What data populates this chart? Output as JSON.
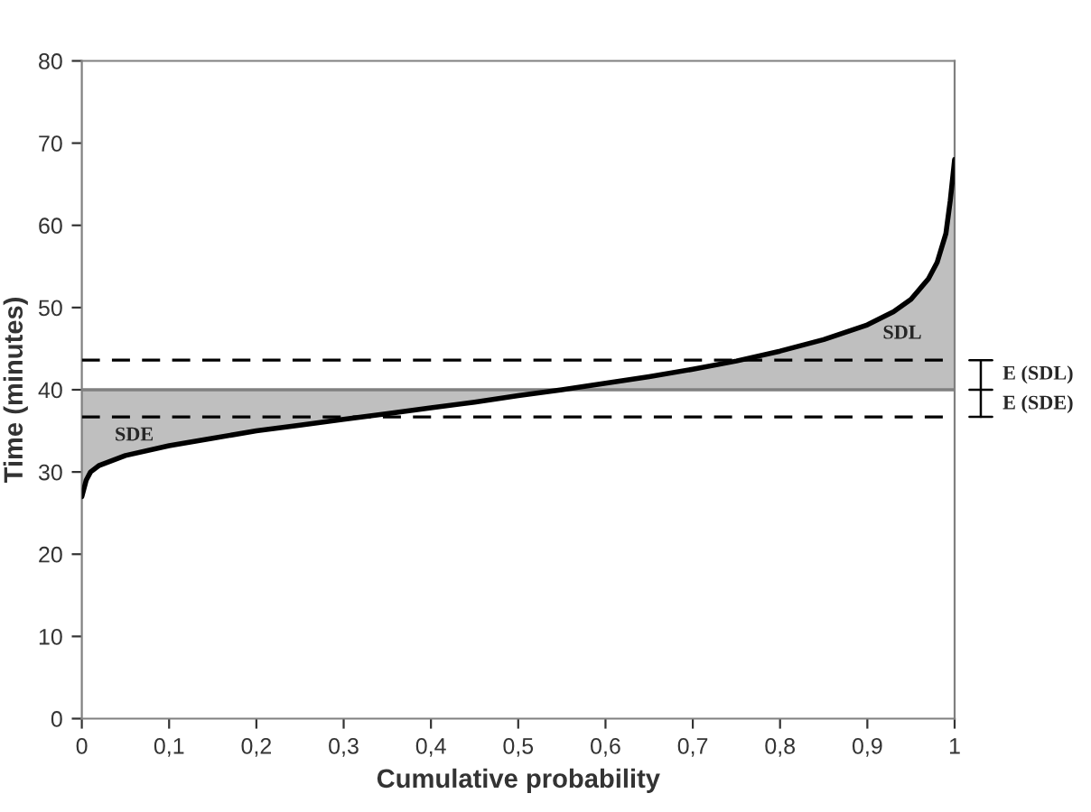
{
  "chart_data": {
    "type": "line",
    "xlabel": "Cumulative probability",
    "ylabel": "Time (minutes)",
    "x": [
      0,
      0.005,
      0.01,
      0.02,
      0.05,
      0.1,
      0.15,
      0.2,
      0.25,
      0.3,
      0.35,
      0.4,
      0.45,
      0.5,
      0.55,
      0.6,
      0.65,
      0.7,
      0.75,
      0.8,
      0.85,
      0.9,
      0.93,
      0.95,
      0.97,
      0.98,
      0.99,
      0.995,
      1
    ],
    "series": [
      {
        "color": "#000000",
        "values": [
          27,
          29,
          30,
          30.8,
          32,
          33.2,
          34.1,
          35,
          35.7,
          36.4,
          37.1,
          37.8,
          38.5,
          39.3,
          40,
          40.8,
          41.6,
          42.5,
          43.5,
          44.7,
          46.1,
          47.9,
          49.5,
          51,
          53.5,
          55.5,
          59,
          63,
          68
        ],
        "lower": [
          27,
          29,
          30,
          30.8,
          32,
          33.2,
          34.1,
          35,
          35.7,
          36.4,
          37.1,
          37.8,
          38.5,
          39.3,
          40,
          40,
          40,
          40,
          40,
          40,
          40,
          40,
          40,
          40,
          40,
          40,
          40,
          40,
          40
        ],
        "upper": [
          40,
          40,
          40,
          40,
          40,
          40,
          40,
          40,
          40,
          40,
          40,
          40,
          40,
          40,
          40,
          40.8,
          41.6,
          42.5,
          43.5,
          44.7,
          46.1,
          47.9,
          49.5,
          51,
          53.5,
          55.5,
          59,
          63,
          68
        ]
      }
    ],
    "xlim": [
      0,
      1
    ],
    "ylim": [
      0,
      80
    ],
    "xticks": [
      0,
      {
        "value": 0.1,
        "label": "0,1"
      },
      {
        "value": 0.2,
        "label": "0,2"
      },
      {
        "value": 0.3,
        "label": "0,3"
      },
      {
        "value": 0.4,
        "label": "0,4"
      },
      {
        "value": 0.5,
        "label": "0,5"
      },
      {
        "value": 0.6,
        "label": "0,6"
      },
      {
        "value": 0.7,
        "label": "0,7"
      },
      {
        "value": 0.8,
        "label": "0,8"
      },
      {
        "value": 0.9,
        "label": "0,9"
      },
      1
    ],
    "yticks": [
      0,
      10,
      20,
      30,
      40,
      50,
      60,
      70,
      80
    ],
    "ref_lines": [
      {
        "axis": "y",
        "value": 40,
        "color": "#808080",
        "line_style": "solid"
      },
      {
        "axis": "y",
        "value": 43.6,
        "color": "#000000",
        "line_style": "dashed"
      },
      {
        "axis": "y",
        "value": 36.7,
        "color": "#000000",
        "line_style": "dashed"
      }
    ],
    "annotations": [
      "SDE",
      "SDL",
      "E (SDL)",
      "E (SDE)"
    ],
    "grid": false,
    "legend": false,
    "marker": "none",
    "line_style": "solid"
  }
}
